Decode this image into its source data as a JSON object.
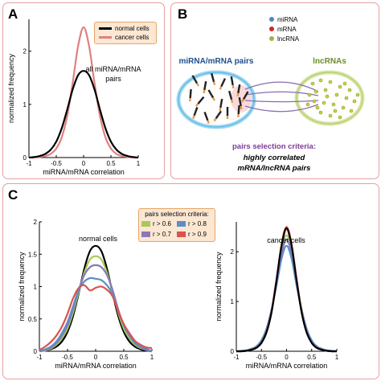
{
  "panels": {
    "A": {
      "label": "A",
      "annotation": "all miRNA/mRNA pairs",
      "legend": [
        {
          "name": "normal cells",
          "color": "#000000"
        },
        {
          "name": "cancer cells",
          "color": "#e08080"
        }
      ]
    },
    "B": {
      "label": "B",
      "legend": [
        {
          "name": "miRNA",
          "color": "#4d86c4"
        },
        {
          "name": "mRNA",
          "color": "#c9292a"
        },
        {
          "name": "lncRNA",
          "color": "#9ab544"
        }
      ],
      "mirna_mrna_title": "miRNA/mRNA pairs",
      "lncrna_title": "lncRNAs",
      "criteria_title": "pairs selection criteria:",
      "criteria_text_1": "highly correlated",
      "criteria_text_2": "mRNA/lncRNA pairs",
      "colors": {
        "mirna_ellipse": "#56b8e6",
        "lncrna_ellipse": "#c9dc8a",
        "criteria": "#7b3b9a",
        "lines": "#8b6bb0"
      }
    },
    "C": {
      "label": "C",
      "legend_title": "pairs selection criteria:",
      "legend": [
        {
          "name": "r > 0.6",
          "color": "#a8c95a"
        },
        {
          "name": "r > 0.8",
          "color": "#5b8ec8"
        },
        {
          "name": "r > 0.7",
          "color": "#8a78b8"
        },
        {
          "name": "r > 0.9",
          "color": "#d9534f"
        }
      ],
      "left_annotation": "normal cells",
      "right_annotation": "cancer cells"
    }
  },
  "chart_data": [
    {
      "id": "A",
      "type": "line",
      "xlabel": "miRNA/mRNA correlation",
      "ylabel": "normalized  frequency",
      "xlim": [
        -1,
        1
      ],
      "ylim": [
        0,
        2.6
      ],
      "xticks": [
        -1,
        -0.5,
        0,
        0.5,
        1
      ],
      "xtick_labels": [
        "-1",
        "-0.5",
        "0",
        "0.5",
        "1"
      ],
      "yticks": [
        0,
        1,
        2
      ],
      "ytick_labels": [
        "0",
        "1",
        "2"
      ],
      "x": [
        -1,
        -0.9,
        -0.8,
        -0.7,
        -0.6,
        -0.5,
        -0.4,
        -0.3,
        -0.2,
        -0.1,
        0,
        0.1,
        0.2,
        0.3,
        0.4,
        0.5,
        0.6,
        0.7,
        0.8,
        0.9,
        1
      ],
      "series": [
        {
          "name": "cancer cells",
          "color": "#e08080",
          "values": [
            0,
            0,
            0.01,
            0.03,
            0.07,
            0.17,
            0.38,
            0.78,
            1.4,
            2.1,
            2.45,
            2.1,
            1.4,
            0.78,
            0.38,
            0.17,
            0.07,
            0.03,
            0.01,
            0,
            0
          ]
        },
        {
          "name": "normal cells",
          "color": "#000000",
          "values": [
            0,
            0.01,
            0.03,
            0.07,
            0.15,
            0.3,
            0.55,
            0.9,
            1.28,
            1.55,
            1.63,
            1.55,
            1.28,
            0.9,
            0.55,
            0.3,
            0.15,
            0.07,
            0.03,
            0.01,
            0
          ]
        }
      ]
    },
    {
      "id": "C-left",
      "type": "line",
      "xlabel": "miRNA/mRNA correlation",
      "ylabel": "normalized  frequency",
      "xlim": [
        -1,
        1
      ],
      "ylim": [
        0,
        2
      ],
      "xticks": [
        -1,
        -0.5,
        0,
        0.5,
        1
      ],
      "xtick_labels": [
        "-1",
        "-0.5",
        "0",
        "0.5",
        "1"
      ],
      "yticks": [
        0,
        0.5,
        1,
        1.5,
        2
      ],
      "ytick_labels": [
        "0",
        "0.5",
        "1",
        "1.5",
        "2"
      ],
      "x": [
        -1,
        -0.9,
        -0.8,
        -0.7,
        -0.6,
        -0.5,
        -0.4,
        -0.3,
        -0.2,
        -0.1,
        0,
        0.1,
        0.2,
        0.3,
        0.4,
        0.5,
        0.6,
        0.7,
        0.8,
        0.9,
        1
      ],
      "series": [
        {
          "name": "normal cells",
          "color": "#000000",
          "values": [
            0,
            0.01,
            0.03,
            0.07,
            0.15,
            0.3,
            0.55,
            0.9,
            1.28,
            1.55,
            1.63,
            1.55,
            1.28,
            0.9,
            0.55,
            0.3,
            0.15,
            0.07,
            0.03,
            0.01,
            0
          ]
        },
        {
          "name": "r > 0.6",
          "color": "#a8c95a",
          "values": [
            0,
            0.01,
            0.04,
            0.1,
            0.2,
            0.35,
            0.6,
            0.92,
            1.22,
            1.42,
            1.47,
            1.42,
            1.22,
            0.92,
            0.6,
            0.35,
            0.2,
            0.1,
            0.05,
            0.02,
            0
          ]
        },
        {
          "name": "r > 0.7",
          "color": "#8a78b8",
          "values": [
            0,
            0.02,
            0.05,
            0.12,
            0.24,
            0.4,
            0.65,
            0.95,
            1.18,
            1.3,
            1.33,
            1.3,
            1.18,
            0.95,
            0.65,
            0.4,
            0.24,
            0.12,
            0.06,
            0.02,
            0
          ]
        },
        {
          "name": "r > 0.8",
          "color": "#5b8ec8",
          "values": [
            0,
            0.03,
            0.07,
            0.15,
            0.28,
            0.45,
            0.7,
            0.95,
            1.08,
            1.13,
            1.12,
            1.1,
            1.02,
            0.88,
            0.62,
            0.4,
            0.24,
            0.13,
            0.07,
            0.04,
            0
          ]
        },
        {
          "name": "r > 0.9",
          "color": "#d9534f",
          "values": [
            0.02,
            0.07,
            0.14,
            0.24,
            0.38,
            0.58,
            0.82,
            0.98,
            1.02,
            0.94,
            0.98,
            1.0,
            0.95,
            0.85,
            0.62,
            0.42,
            0.28,
            0.16,
            0.1,
            0.06,
            0.05
          ]
        }
      ]
    },
    {
      "id": "C-right",
      "type": "line",
      "xlabel": "miRNA/mRNA correlation",
      "ylabel": "normalized  frequency",
      "xlim": [
        -1,
        1
      ],
      "ylim": [
        0,
        2.6
      ],
      "xticks": [
        -1,
        -0.5,
        0,
        0.5,
        1
      ],
      "xtick_labels": [
        "-1",
        "-0.5",
        "0",
        "0.5",
        "1"
      ],
      "yticks": [
        0,
        1,
        2
      ],
      "ytick_labels": [
        "0",
        "1",
        "2"
      ],
      "x": [
        -1,
        -0.9,
        -0.8,
        -0.7,
        -0.6,
        -0.5,
        -0.4,
        -0.3,
        -0.2,
        -0.1,
        0,
        0.1,
        0.2,
        0.3,
        0.4,
        0.5,
        0.6,
        0.7,
        0.8,
        0.9,
        1
      ],
      "series": [
        {
          "name": "cancer cells",
          "color": "#e08080",
          "values": [
            0,
            0,
            0.01,
            0.03,
            0.07,
            0.17,
            0.38,
            0.78,
            1.4,
            2.1,
            2.45,
            2.1,
            1.4,
            0.78,
            0.38,
            0.17,
            0.07,
            0.03,
            0.01,
            0,
            0
          ]
        },
        {
          "name": "r > 0.6",
          "color": "#a8c95a",
          "values": [
            0,
            0,
            0.01,
            0.03,
            0.08,
            0.18,
            0.4,
            0.8,
            1.38,
            2.02,
            2.33,
            2.02,
            1.38,
            0.8,
            0.4,
            0.18,
            0.08,
            0.03,
            0.01,
            0,
            0
          ]
        },
        {
          "name": "r > 0.7",
          "color": "#8a78b8",
          "values": [
            0,
            0,
            0.01,
            0.04,
            0.09,
            0.2,
            0.42,
            0.82,
            1.35,
            1.95,
            2.25,
            1.95,
            1.35,
            0.82,
            0.42,
            0.2,
            0.09,
            0.04,
            0.01,
            0,
            0
          ]
        },
        {
          "name": "r > 0.8",
          "color": "#5b8ec8",
          "values": [
            0,
            0.01,
            0.02,
            0.05,
            0.1,
            0.22,
            0.45,
            0.84,
            1.32,
            1.86,
            2.12,
            1.86,
            1.32,
            0.84,
            0.45,
            0.22,
            0.1,
            0.05,
            0.02,
            0.01,
            0
          ]
        },
        {
          "name": "r > 0.9",
          "color": "#d9534f",
          "values": [
            0,
            0,
            0.01,
            0.03,
            0.07,
            0.17,
            0.38,
            0.8,
            1.45,
            2.15,
            2.5,
            2.15,
            1.45,
            0.8,
            0.38,
            0.17,
            0.07,
            0.03,
            0.01,
            0,
            0
          ]
        },
        {
          "name": "normal cells",
          "color": "#000000",
          "values": [
            0,
            0,
            0.01,
            0.03,
            0.07,
            0.17,
            0.38,
            0.78,
            1.42,
            2.12,
            2.47,
            2.12,
            1.42,
            0.78,
            0.38,
            0.17,
            0.07,
            0.03,
            0.01,
            0,
            0
          ]
        }
      ]
    }
  ]
}
